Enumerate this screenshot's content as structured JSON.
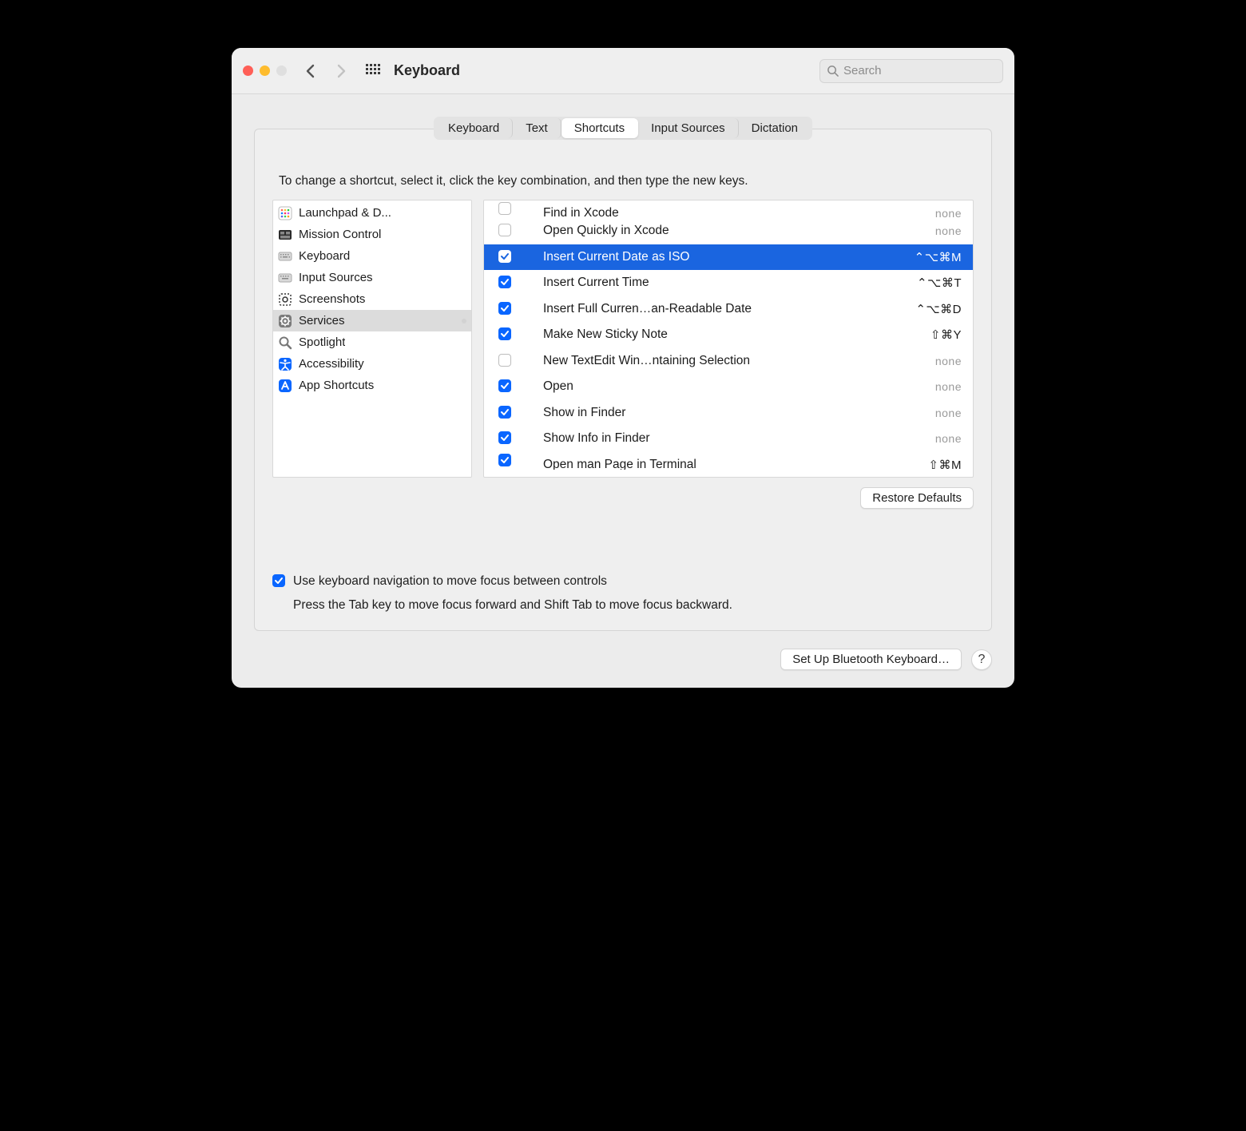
{
  "colors": {
    "traffic_red": "#ff5f57",
    "traffic_yellow": "#febc2e",
    "traffic_gray": "#dfdfdf",
    "accent_blue": "#0a66ff",
    "selection_blue": "#1a65e0",
    "sidebar_selection": "#dcdcdc"
  },
  "titlebar": {
    "title": "Keyboard",
    "search_placeholder": "Search"
  },
  "tabs": [
    {
      "label": "Keyboard",
      "active": false
    },
    {
      "label": "Text",
      "active": false
    },
    {
      "label": "Shortcuts",
      "active": true
    },
    {
      "label": "Input Sources",
      "active": false
    },
    {
      "label": "Dictation",
      "active": false
    }
  ],
  "instruction": "To change a shortcut, select it, click the key combination, and then type the new keys.",
  "categories": [
    {
      "label": "Launchpad & D...",
      "icon": "launchpad",
      "selected": false
    },
    {
      "label": "Mission Control",
      "icon": "mission-control",
      "selected": false
    },
    {
      "label": "Keyboard",
      "icon": "keyboard",
      "selected": false
    },
    {
      "label": "Input Sources",
      "icon": "input-sources",
      "selected": false
    },
    {
      "label": "Screenshots",
      "icon": "screenshot",
      "selected": false
    },
    {
      "label": "Services",
      "icon": "gear",
      "selected": true
    },
    {
      "label": "Spotlight",
      "icon": "spotlight",
      "selected": false
    },
    {
      "label": "Accessibility",
      "icon": "accessibility",
      "selected": false
    },
    {
      "label": "App Shortcuts",
      "icon": "app-shortcuts",
      "selected": false
    }
  ],
  "shortcuts": [
    {
      "checked": false,
      "label": "Find in Xcode",
      "key": "none",
      "selected": false,
      "partial": true
    },
    {
      "checked": false,
      "label": "Open Quickly in Xcode",
      "key": "none",
      "selected": false
    },
    {
      "checked": true,
      "label": "Insert Current Date as ISO",
      "key": "⌃⌥⌘M",
      "selected": true
    },
    {
      "checked": true,
      "label": "Insert Current Time",
      "key": "⌃⌥⌘T",
      "selected": false
    },
    {
      "checked": true,
      "label": "Insert Full Curren…an-Readable Date",
      "key": "⌃⌥⌘D",
      "selected": false
    },
    {
      "checked": true,
      "label": "Make New Sticky Note",
      "key": "⇧⌘Y",
      "selected": false
    },
    {
      "checked": false,
      "label": "New TextEdit Win…ntaining Selection",
      "key": "none",
      "selected": false
    },
    {
      "checked": true,
      "label": "Open",
      "key": "none",
      "selected": false
    },
    {
      "checked": true,
      "label": "Show in Finder",
      "key": "none",
      "selected": false
    },
    {
      "checked": true,
      "label": "Show Info in Finder",
      "key": "none",
      "selected": false
    },
    {
      "checked": true,
      "label": "Open man Page in Terminal",
      "key": "⇧⌘M",
      "selected": false,
      "partial": true
    }
  ],
  "restore_label": "Restore Defaults",
  "kbnav": {
    "checked": true,
    "line1": "Use keyboard navigation to move focus between controls",
    "line2": "Press the Tab key to move focus forward and Shift Tab to move focus backward."
  },
  "footer": {
    "bt_label": "Set Up Bluetooth Keyboard…",
    "help": "?"
  }
}
